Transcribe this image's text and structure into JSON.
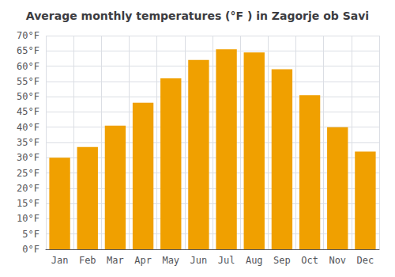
{
  "chart_data": {
    "type": "bar",
    "title": "Average monthly temperatures (°F ) in Zagorje ob Savi",
    "categories": [
      "Jan",
      "Feb",
      "Mar",
      "Apr",
      "May",
      "Jun",
      "Jul",
      "Aug",
      "Sep",
      "Oct",
      "Nov",
      "Dec"
    ],
    "values": [
      30,
      33.5,
      40.5,
      48,
      56,
      62,
      65.5,
      64.5,
      59,
      50.5,
      40,
      32
    ],
    "color": "#F0A000",
    "ylim": [
      0,
      70
    ],
    "yticks": [
      {
        "value": 0,
        "label": "0°F"
      },
      {
        "value": 5,
        "label": "5°F"
      },
      {
        "value": 10,
        "label": "10°F"
      },
      {
        "value": 15,
        "label": "15°F"
      },
      {
        "value": 20,
        "label": "20°F"
      },
      {
        "value": 25,
        "label": "25°F"
      },
      {
        "value": 30,
        "label": "30°F"
      },
      {
        "value": 35,
        "label": "35°F"
      },
      {
        "value": 40,
        "label": "40°F"
      },
      {
        "value": 45,
        "label": "45°F"
      },
      {
        "value": 50,
        "label": "50°F"
      },
      {
        "value": 55,
        "label": "55°F"
      },
      {
        "value": 60,
        "label": "60°F"
      },
      {
        "value": 65,
        "label": "65°F"
      },
      {
        "value": 70,
        "label": "70°F"
      }
    ],
    "grid": true
  }
}
